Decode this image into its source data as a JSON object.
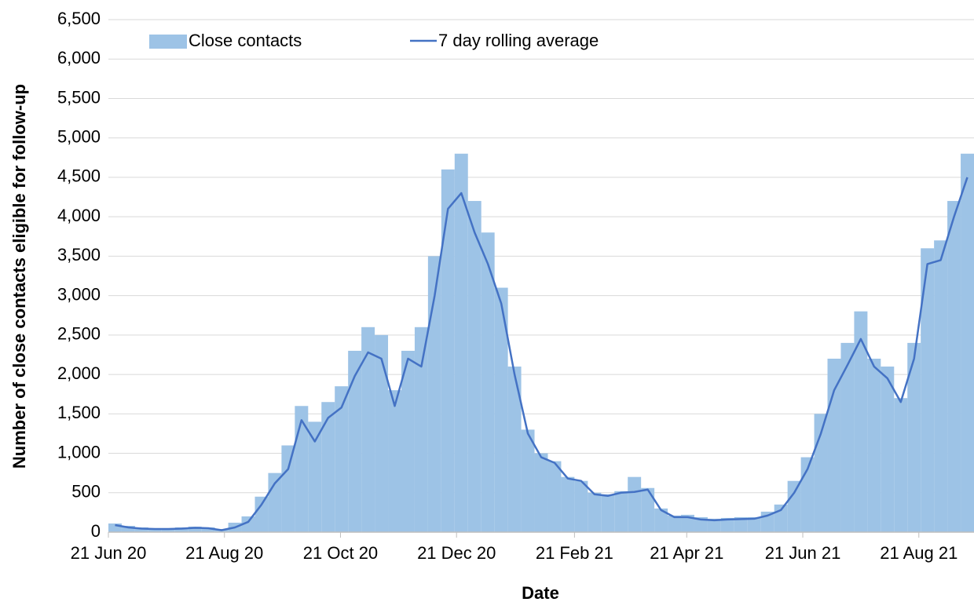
{
  "chart_data": {
    "type": "bar",
    "y_label": "Number of close contacts eligible for follow-up",
    "x_label": "Date",
    "x": [
      "2020-06-21",
      "2020-06-28",
      "2020-07-05",
      "2020-07-12",
      "2020-07-19",
      "2020-07-26",
      "2020-08-02",
      "2020-08-09",
      "2020-08-16",
      "2020-08-23",
      "2020-08-30",
      "2020-09-06",
      "2020-09-13",
      "2020-09-20",
      "2020-09-27",
      "2020-10-04",
      "2020-10-11",
      "2020-10-18",
      "2020-10-25",
      "2020-11-01",
      "2020-11-08",
      "2020-11-15",
      "2020-11-22",
      "2020-11-29",
      "2020-12-06",
      "2020-12-13",
      "2020-12-20",
      "2020-12-27",
      "2021-01-03",
      "2021-01-10",
      "2021-01-17",
      "2021-01-24",
      "2021-01-31",
      "2021-02-07",
      "2021-02-14",
      "2021-02-21",
      "2021-02-28",
      "2021-03-07",
      "2021-03-14",
      "2021-03-21",
      "2021-03-28",
      "2021-04-04",
      "2021-04-11",
      "2021-04-18",
      "2021-04-25",
      "2021-05-02",
      "2021-05-09",
      "2021-05-16",
      "2021-05-23",
      "2021-05-30",
      "2021-06-06",
      "2021-06-13",
      "2021-06-20",
      "2021-06-27",
      "2021-07-04",
      "2021-07-11",
      "2021-07-18",
      "2021-07-25",
      "2021-08-01",
      "2021-08-08",
      "2021-08-15",
      "2021-08-22",
      "2021-08-29",
      "2021-09-05",
      "2021-09-12"
    ],
    "series": [
      {
        "name": "Close contacts",
        "type": "bar",
        "color": "#9dc3e6",
        "values": [
          110,
          80,
          60,
          50,
          50,
          60,
          70,
          60,
          40,
          120,
          200,
          450,
          750,
          1100,
          1600,
          1400,
          1650,
          1850,
          2300,
          2600,
          2500,
          1800,
          2300,
          2600,
          3500,
          4600,
          4800,
          4200,
          3800,
          3100,
          2100,
          1300,
          1000,
          900,
          700,
          650,
          500,
          480,
          520,
          700,
          560,
          300,
          210,
          220,
          190,
          170,
          180,
          190,
          190,
          260,
          350,
          650,
          950,
          1500,
          2200,
          2400,
          2800,
          2200,
          2100,
          1700,
          2400,
          3600,
          3700,
          4200,
          4800
        ]
      },
      {
        "name": "7 day rolling average",
        "type": "line",
        "color": "#4472c4",
        "values": [
          90,
          60,
          45,
          40,
          40,
          45,
          55,
          50,
          25,
          60,
          130,
          350,
          620,
          800,
          1420,
          1150,
          1450,
          1580,
          1980,
          2280,
          2200,
          1600,
          2200,
          2100,
          3000,
          4100,
          4300,
          3800,
          3400,
          2900,
          2000,
          1250,
          950,
          880,
          680,
          650,
          480,
          460,
          500,
          510,
          540,
          280,
          190,
          190,
          160,
          150,
          160,
          165,
          170,
          210,
          280,
          500,
          800,
          1250,
          1800,
          2120,
          2450,
          2100,
          1950,
          1650,
          2200,
          3400,
          3450,
          4000,
          4500
        ]
      }
    ],
    "xlim": [
      "2020-06-21",
      "2021-09-19"
    ],
    "xticks": [
      {
        "value": "2020-06-21",
        "label": "21 Jun 20"
      },
      {
        "value": "2020-08-21",
        "label": "21 Aug 20"
      },
      {
        "value": "2020-10-21",
        "label": "21 Oct 20"
      },
      {
        "value": "2020-12-21",
        "label": "21 Dec 20"
      },
      {
        "value": "2021-02-21",
        "label": "21 Feb 21"
      },
      {
        "value": "2021-04-21",
        "label": "21 Apr 21"
      },
      {
        "value": "2021-06-21",
        "label": "21 Jun 21"
      },
      {
        "value": "2021-08-21",
        "label": "21 Aug 21"
      }
    ],
    "ylim": [
      0,
      6500
    ],
    "yticks": [
      0,
      500,
      {
        "value": 1000,
        "label": "1,000"
      },
      {
        "value": 1500,
        "label": "1,500"
      },
      {
        "value": 2000,
        "label": "2,000"
      },
      {
        "value": 2500,
        "label": "2,500"
      },
      {
        "value": 3000,
        "label": "3,000"
      },
      {
        "value": 3500,
        "label": "3,500"
      },
      {
        "value": 4000,
        "label": "4,000"
      },
      {
        "value": 4500,
        "label": "4,500"
      },
      {
        "value": 5000,
        "label": "5,000"
      },
      {
        "value": 5500,
        "label": "5,500"
      },
      {
        "value": 6000,
        "label": "6,000"
      },
      {
        "value": 6500,
        "label": "6,500"
      }
    ],
    "grid": true,
    "legend": "top"
  }
}
